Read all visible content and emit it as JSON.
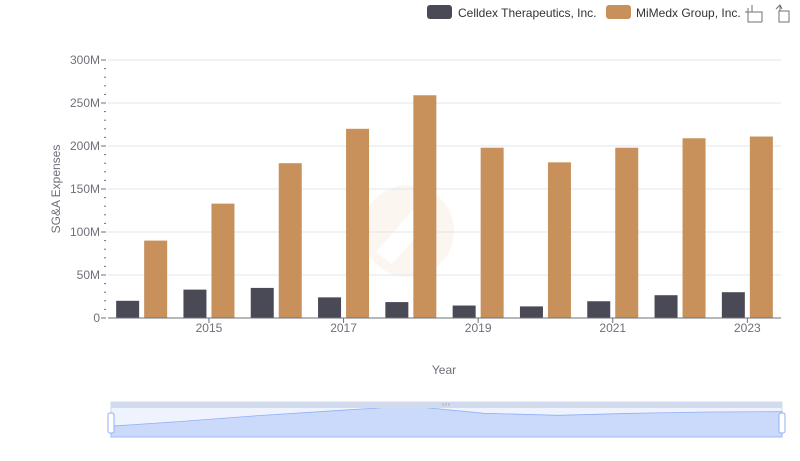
{
  "chart_data": {
    "type": "bar",
    "categories": [
      "2014",
      "2015",
      "2016",
      "2017",
      "2018",
      "2019",
      "2020",
      "2021",
      "2022",
      "2023"
    ],
    "x_tick_labels": [
      "2015",
      "2017",
      "2019",
      "2021",
      "2023"
    ],
    "xlabel": "Year",
    "ylabel": "SG&A Expenses",
    "ylim": [
      0,
      300000000
    ],
    "y_ticks": [
      0,
      50000000,
      100000000,
      150000000,
      200000000,
      250000000,
      300000000
    ],
    "y_tick_labels": [
      "0",
      "50M",
      "100M",
      "150M",
      "200M",
      "250M",
      "300M"
    ],
    "grid": true,
    "legend_position": "top-right",
    "series": [
      {
        "name": "Celldex Therapeutics, Inc.",
        "color": "#4a4a57",
        "values": [
          20000000,
          33000000,
          35000000,
          24000000,
          18500000,
          14500000,
          13500000,
          19500000,
          26500000,
          30000000
        ]
      },
      {
        "name": "MiMedx Group, Inc.",
        "color": "#c8915c",
        "values": [
          90000000,
          133000000,
          180000000,
          220000000,
          259000000,
          198000000,
          181000000,
          198000000,
          209000000,
          211000000
        ]
      }
    ]
  },
  "toolbox": {
    "icons": [
      "zoom-icon",
      "restore-icon"
    ]
  },
  "datazoom": {
    "start_percent": 0,
    "end_percent": 100,
    "fill_color": "#d6e2fb",
    "line_color": "#8fb0f7"
  }
}
